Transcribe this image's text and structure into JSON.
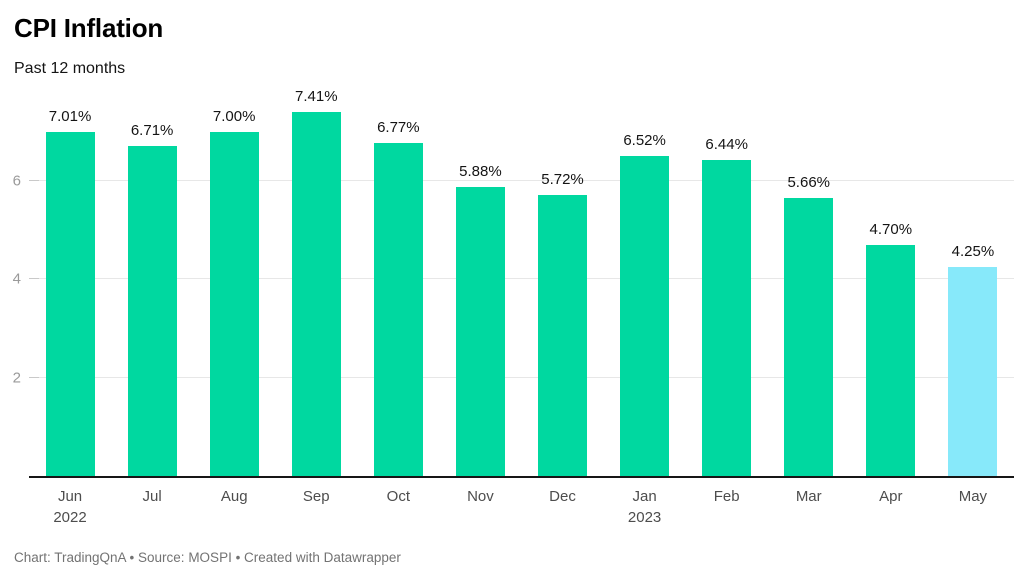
{
  "chart": {
    "title": "CPI Inflation",
    "subtitle": "Past 12 months"
  },
  "chart_data": {
    "type": "bar",
    "title": "CPI Inflation",
    "subtitle": "Past 12 months",
    "categories": [
      "Jun",
      "Jul",
      "Aug",
      "Sep",
      "Oct",
      "Nov",
      "Dec",
      "Jan",
      "Feb",
      "Mar",
      "Apr",
      "May"
    ],
    "category_year_labels": [
      "2022",
      "",
      "",
      "",
      "",
      "",
      "",
      "2023",
      "",
      "",
      "",
      ""
    ],
    "values": [
      7.01,
      6.71,
      7.0,
      7.41,
      6.77,
      5.88,
      5.72,
      6.52,
      6.44,
      5.66,
      4.7,
      4.25
    ],
    "value_labels": [
      "7.01%",
      "6.71%",
      "7.00%",
      "7.41%",
      "6.77%",
      "5.88%",
      "5.72%",
      "6.52%",
      "6.44%",
      "5.66%",
      "4.70%",
      "4.25%"
    ],
    "xlabel": "",
    "ylabel": "",
    "yticks": [
      2,
      4,
      6
    ],
    "ylim": [
      0,
      8
    ],
    "grid": true,
    "legend": false,
    "bar_color": "#00d8a0",
    "highlight_color": "#87e9fa",
    "highlight_index": 11,
    "gridline_color": "#e7e7e7",
    "axis_label_color": "#9a9a9a",
    "baseline_color": "#161616"
  },
  "footer": {
    "text": "Chart: TradingQnA • Source: MOSPI • Created with Datawrapper"
  }
}
